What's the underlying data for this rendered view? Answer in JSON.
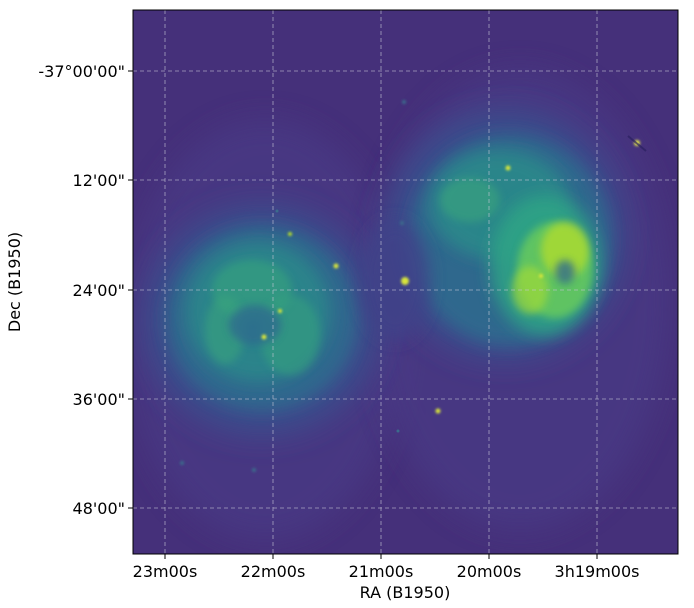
{
  "figure": {
    "xlabel": "RA (B1950)",
    "ylabel": "Dec (B1950)",
    "x_ticks": [
      "23m00s",
      "22m00s",
      "21m00s",
      "20m00s",
      "3h19m00s"
    ],
    "y_ticks": [
      "-37°00'00\"",
      "12'00\"",
      "24'00\"",
      "36'00\"",
      "48'00\""
    ],
    "grid": "dashed",
    "colormap": "viridis",
    "colors": {
      "background": "#45307a",
      "low": "#3b4e8c",
      "mid": "#2a8d8a",
      "high": "#49bd74",
      "peak": "#c8e53a",
      "grid": "#c8c8d8"
    }
  }
}
